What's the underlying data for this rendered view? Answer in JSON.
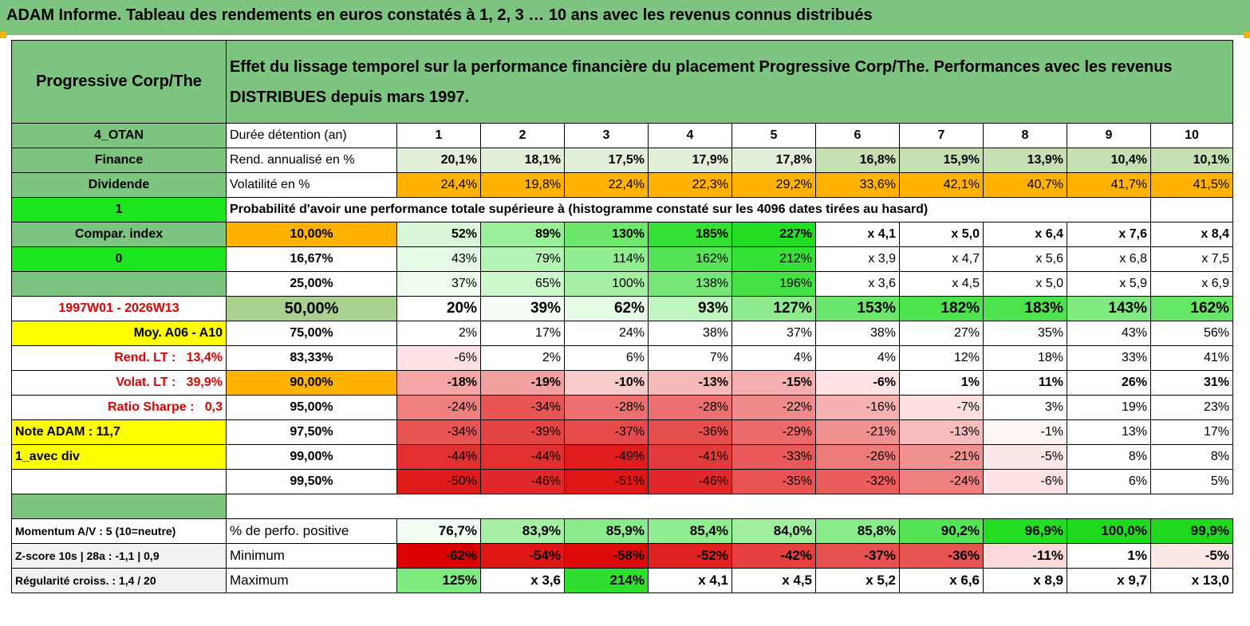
{
  "report_title": "ADAM Informe. Tableau des rendements en euros constatés à 1, 2, 3 … 10 ans avec les revenus connus distribués",
  "asset_name": "Progressive Corp/The",
  "description": "Effet du lissage temporel sur la performance financière du placement Progressive Corp/The. Performances avec les revenus DISTRIBUES depuis mars 1997.",
  "side": {
    "code": "4_OTAN",
    "sector": "Finance",
    "type": "Dividende",
    "flag1": "1",
    "compar_index": "Compar. index",
    "flag0": "0",
    "period": "1997W01 - 2026W13",
    "moy": "Moy. A06 - A10",
    "rend_lt_label": "Rend. LT :",
    "rend_lt_value": "13,4%",
    "volat_lt_label": "Volat. LT :",
    "volat_lt_value": "39,9%",
    "sharpe_label": "Ratio Sharpe :",
    "sharpe_value": "0,3",
    "note": "Note ADAM : 11,7",
    "avec_div": "1_avec div",
    "momentum": "Momentum A/V : 5 (10=neutre)",
    "zscore": "Z-score 10s | 28a : -1,1 | 0,9",
    "regularite": "Régularité croiss. : 1,4 / 20"
  },
  "labels": {
    "duree": "Durée détention (an)",
    "rend": "Rend. annualisé en %",
    "vol": "Volatilité en %",
    "prob_header": "Probabilité d'avoir une performance totale supérieure à (histogramme constaté sur les 4096 dates tirées au hasard)",
    "positive": "% de perfo. positive",
    "minimum": "Minimum",
    "maximum": "Maximum"
  },
  "years": [
    "1",
    "2",
    "3",
    "4",
    "5",
    "6",
    "7",
    "8",
    "9",
    "10"
  ],
  "rend": [
    "20,1%",
    "18,1%",
    "17,5%",
    "17,9%",
    "17,8%",
    "16,8%",
    "15,9%",
    "13,9%",
    "10,4%",
    "10,1%"
  ],
  "vol": [
    "24,4%",
    "19,8%",
    "22,4%",
    "22,3%",
    "29,2%",
    "33,6%",
    "42,1%",
    "40,7%",
    "41,7%",
    "41,5%"
  ],
  "prob_rows": [
    {
      "p": "10,00%",
      "v": [
        "52%",
        "89%",
        "130%",
        "185%",
        "227%",
        "x 4,1",
        "x 5,0",
        "x 6,4",
        "x 7,6",
        "x 8,4"
      ],
      "bg": [
        "#d9f8d9",
        "#9af09a",
        "#6de86d",
        "#33e033",
        "#22dd22",
        "#fff",
        "#fff",
        "#fff",
        "#fff",
        "#fff"
      ],
      "bold": true
    },
    {
      "p": "16,67%",
      "v": [
        "43%",
        "79%",
        "114%",
        "162%",
        "212%",
        "x 3,9",
        "x 4,7",
        "x 5,6",
        "x 6,8",
        "x 7,5"
      ],
      "bg": [
        "#e6fbe6",
        "#b3f3b3",
        "#90ed90",
        "#55e455",
        "#33e033",
        "#fff",
        "#fff",
        "#fff",
        "#fff",
        "#fff"
      ],
      "bold": false
    },
    {
      "p": "25,00%",
      "v": [
        "37%",
        "65%",
        "100%",
        "138%",
        "196%",
        "x 3,6",
        "x 4,5",
        "x 5,0",
        "x 5,9",
        "x 6,9"
      ],
      "bg": [
        "#eefcee",
        "#cdf7cd",
        "#a6f0a6",
        "#77e877",
        "#44e244",
        "#fff",
        "#fff",
        "#fff",
        "#fff",
        "#fff"
      ],
      "bold": false
    },
    {
      "p": "50,00%",
      "v": [
        "20%",
        "39%",
        "62%",
        "93%",
        "127%",
        "153%",
        "182%",
        "183%",
        "143%",
        "162%"
      ],
      "bg": [
        "#fff",
        "#f5fdf5",
        "#e5fbe5",
        "#bff5bf",
        "#8eec8e",
        "#6be76b",
        "#4de34d",
        "#4de34d",
        "#7fea7f",
        "#66e666"
      ],
      "bold": true
    },
    {
      "p": "75,00%",
      "v": [
        "2%",
        "17%",
        "24%",
        "38%",
        "37%",
        "38%",
        "27%",
        "35%",
        "43%",
        "56%"
      ],
      "bg": [
        "#fff",
        "#fff",
        "#fff",
        "#fff",
        "#fff",
        "#fff",
        "#fff",
        "#fff",
        "#fff",
        "#fff"
      ],
      "bold": false
    },
    {
      "p": "83,33%",
      "v": [
        "-6%",
        "2%",
        "6%",
        "7%",
        "4%",
        "4%",
        "12%",
        "18%",
        "33%",
        "41%"
      ],
      "bg": [
        "#fde3e3",
        "#fff",
        "#fff",
        "#fff",
        "#fff",
        "#fff",
        "#fff",
        "#fff",
        "#fff",
        "#fff"
      ],
      "bold": false
    },
    {
      "p": "90,00%",
      "v": [
        "-18%",
        "-19%",
        "-10%",
        "-13%",
        "-15%",
        "-6%",
        "1%",
        "11%",
        "26%",
        "31%"
      ],
      "bg": [
        "#f4a6a6",
        "#f2a0a0",
        "#f9cccc",
        "#f6b8b8",
        "#f5afaf",
        "#fde3e3",
        "#fff",
        "#fff",
        "#fff",
        "#fff"
      ],
      "bold": true
    },
    {
      "p": "95,00%",
      "v": [
        "-24%",
        "-34%",
        "-28%",
        "-28%",
        "-22%",
        "-16%",
        "-7%",
        "3%",
        "19%",
        "23%"
      ],
      "bg": [
        "#f08080",
        "#e85555",
        "#ed6f6f",
        "#ed6f6f",
        "#f18b8b",
        "#f5b0b0",
        "#fce0e0",
        "#fff",
        "#fff",
        "#fff"
      ],
      "bold": false
    },
    {
      "p": "97,50%",
      "v": [
        "-34%",
        "-39%",
        "-37%",
        "-36%",
        "-29%",
        "-21%",
        "-13%",
        "-1%",
        "13%",
        "17%"
      ],
      "bg": [
        "#e85555",
        "#e54444",
        "#e64b4b",
        "#e74f4f",
        "#ec6a6a",
        "#f29191",
        "#f7bdbd",
        "#fef5f5",
        "#fff",
        "#fff"
      ],
      "bold": false
    },
    {
      "p": "99,00%",
      "v": [
        "-44%",
        "-44%",
        "-49%",
        "-41%",
        "-33%",
        "-26%",
        "-21%",
        "-5%",
        "8%",
        "8%"
      ],
      "bg": [
        "#e22f2f",
        "#e22f2f",
        "#e01c1c",
        "#e33b3b",
        "#e95959",
        "#ef7a7a",
        "#f29191",
        "#fde7e7",
        "#fff",
        "#fff"
      ],
      "bold": false
    },
    {
      "p": "99,50%",
      "v": [
        "-50%",
        "-46%",
        "-51%",
        "-46%",
        "-35%",
        "-32%",
        "-24%",
        "-6%",
        "6%",
        "5%"
      ],
      "bg": [
        "#df1a1a",
        "#e12929",
        "#df1616",
        "#e12929",
        "#e75252",
        "#ea5e5e",
        "#f08080",
        "#fde3e3",
        "#fff",
        "#fff"
      ],
      "bold": false
    }
  ],
  "positive": [
    "76,7%",
    "83,9%",
    "85,9%",
    "85,4%",
    "84,0%",
    "85,8%",
    "90,2%",
    "96,9%",
    "100,0%",
    "99,9%"
  ],
  "positive_bg": [
    "#f2fdf2",
    "#a6f0a6",
    "#8aeb8a",
    "#90ed90",
    "#a0ef9f",
    "#8aeb8a",
    "#55e455",
    "#22dd22",
    "#1ed91e",
    "#1ed91e"
  ],
  "minimum": [
    "-62%",
    "-54%",
    "-58%",
    "-52%",
    "-42%",
    "-37%",
    "-36%",
    "-11%",
    "1%",
    "-5%"
  ],
  "minimum_bg": [
    "#dd0000",
    "#e01515",
    "#df0a0a",
    "#e12020",
    "#e53f3f",
    "#e65050",
    "#e65454",
    "#fbd9d9",
    "#fff",
    "#fde7e7"
  ],
  "maximum": [
    "125%",
    "x 3,6",
    "214%",
    "x 4,1",
    "x 4,5",
    "x 5,2",
    "x 6,6",
    "x 8,9",
    "x 9,7",
    "x 13,0"
  ],
  "maximum_bg": [
    "#7fea7f",
    "#fff",
    "#2fde2f",
    "#fff",
    "#fff",
    "#fff",
    "#fff",
    "#fff",
    "#fff",
    "#fff"
  ],
  "colors": {
    "header_green": "#7cc47f",
    "lime": "#1ee61e",
    "yellow": "#ffff00",
    "orange": "#ffb300",
    "sage": "#a9d08e",
    "red_text": "#e00000"
  }
}
